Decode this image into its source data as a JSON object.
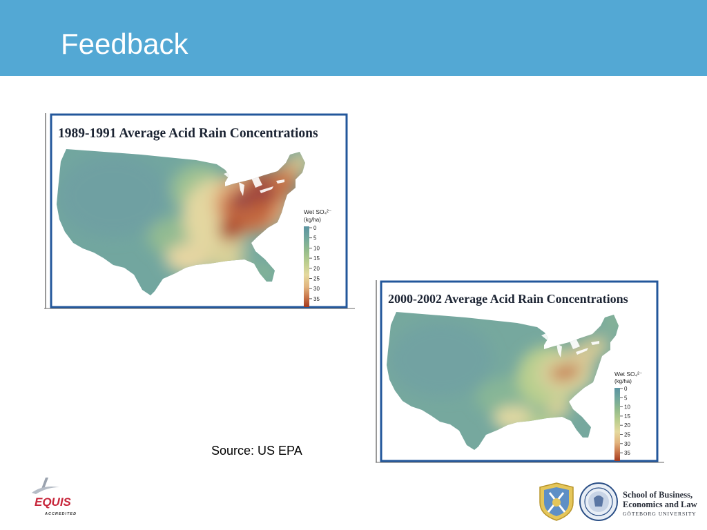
{
  "slide": {
    "title": "Feedback",
    "source": "Source: US EPA",
    "header_color": "#53a8d4"
  },
  "maps": [
    {
      "title": "1989-1991 Average Acid Rain Concentrations",
      "legend": {
        "title": "Wet SO₄²⁻",
        "unit": "(kg/ha)",
        "ticks": [
          "0",
          "5",
          "10",
          "15",
          "20",
          "25",
          "30",
          "35"
        ],
        "colors": [
          "#5b93a1",
          "#72a89c",
          "#94bc8c",
          "#bcce8e",
          "#e5d99e",
          "#e2b47e",
          "#c87448",
          "#a43a1e"
        ]
      }
    },
    {
      "title": "2000-2002 Average Acid Rain Concentrations",
      "legend": {
        "title": "Wet SO₄²⁻",
        "unit": "(kg/ha)",
        "ticks": [
          "0",
          "5",
          "10",
          "15",
          "20",
          "25",
          "30",
          "35"
        ],
        "colors": [
          "#5b93a1",
          "#72a89c",
          "#94bc8c",
          "#bcce8e",
          "#e5d99e",
          "#e2b47e",
          "#c87448",
          "#a43a1e"
        ]
      }
    }
  ],
  "logos": {
    "equis": {
      "name": "EQUIS",
      "tagline": "ACCREDITED"
    },
    "school": {
      "line1": "School of Business,",
      "line2": "Economics and Law",
      "university": "GÖTEBORG UNIVERSITY"
    }
  }
}
